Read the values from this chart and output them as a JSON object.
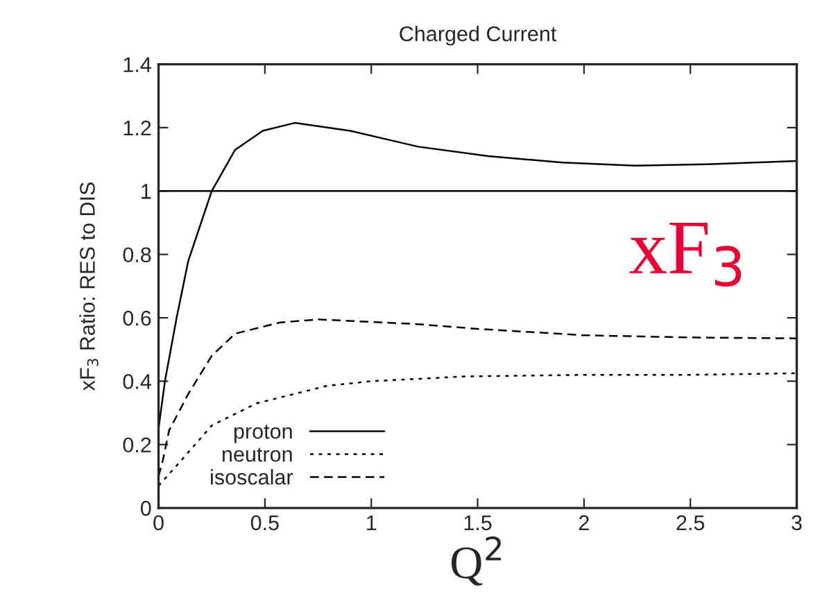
{
  "chart_data": {
    "type": "line",
    "title": "Charged Current",
    "xlabel": "Q$^{2}$",
    "ylabel": "xF$_{3}$ Ratio: RES to DIS",
    "xlim": [
      0,
      3
    ],
    "ylim": [
      0,
      1.4
    ],
    "xticks": [
      0,
      0.5,
      1,
      1.5,
      2,
      2.5,
      3
    ],
    "yticks": [
      0,
      0.2,
      0.4,
      0.6,
      0.8,
      1,
      1.2,
      1.4
    ],
    "grid": false,
    "legend": "bottom left",
    "series": [
      {
        "name": "proton",
        "color": "#000000",
        "line_style": "solid",
        "x": [
          0,
          0.03,
          0.085,
          0.14,
          0.25,
          0.36,
          0.49,
          0.64,
          0.9,
          1.22,
          1.55,
          1.9,
          2.24,
          2.6,
          3
        ],
        "values": [
          0.25,
          0.4,
          0.6,
          0.78,
          1.0,
          1.13,
          1.19,
          1.215,
          1.19,
          1.14,
          1.11,
          1.09,
          1.08,
          1.085,
          1.095
        ]
      },
      {
        "name": "neutron",
        "color": "#000000",
        "line_style": "dotted",
        "x": [
          0,
          0.1,
          0.25,
          0.46,
          0.79,
          1.0,
          1.44,
          2.0,
          2.5,
          3
        ],
        "values": [
          0.07,
          0.145,
          0.26,
          0.33,
          0.385,
          0.4,
          0.415,
          0.42,
          0.42,
          0.425
        ]
      },
      {
        "name": "isoscalar",
        "color": "#000000",
        "line_style": "dashed",
        "x": [
          0,
          0.02,
          0.05,
          0.14,
          0.25,
          0.36,
          0.57,
          0.75,
          1.22,
          1.5,
          2.0,
          2.5,
          3
        ],
        "values": [
          0.1,
          0.15,
          0.245,
          0.36,
          0.48,
          0.55,
          0.585,
          0.595,
          0.58,
          0.565,
          0.545,
          0.538,
          0.535
        ]
      }
    ],
    "ref_lines": [
      {
        "axis": "y",
        "value": 1,
        "color": "#000000"
      }
    ],
    "annotations": [
      "xF$_{3}$"
    ]
  }
}
